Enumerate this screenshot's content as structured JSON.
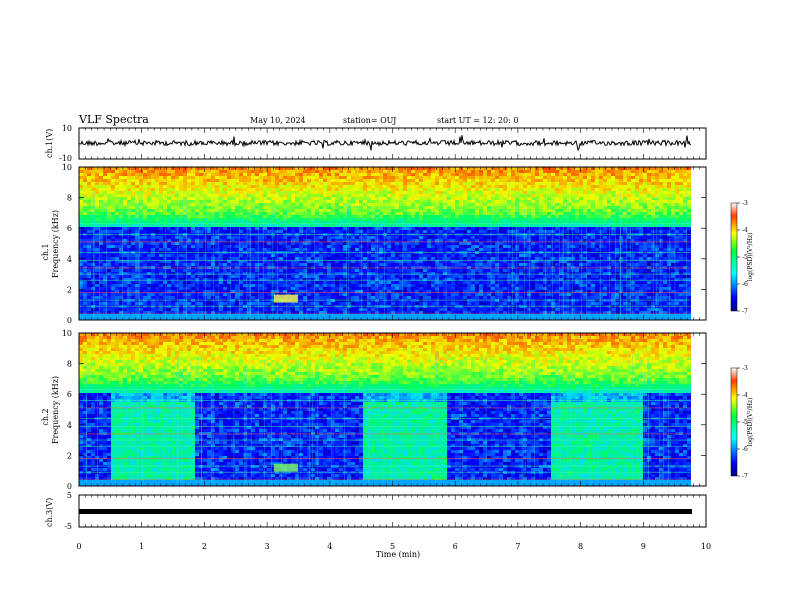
{
  "header": {
    "title": "VLF Spectra",
    "date": "May 10, 2024",
    "station": "station= OUJ",
    "start": "start  UT  =   12: 20: 0"
  },
  "chart_data": [
    {
      "type": "line",
      "panel": "ch1-waveform",
      "ylabel": "ch.1(V)",
      "ylim": [
        -10,
        10
      ],
      "yticks": [
        "10",
        "-10"
      ],
      "xlim": [
        0,
        10
      ]
    },
    {
      "type": "heatmap",
      "panel": "ch1-spectrogram",
      "ylabel_top": "ch.1",
      "ylabel": "Frequency (kHz)",
      "ylim": [
        0,
        10
      ],
      "yticks": [
        "0",
        "2",
        "4",
        "6",
        "8",
        "10"
      ],
      "xlim": [
        0,
        10
      ],
      "colorbar": {
        "label": "log(PSD)(V²/Hz)",
        "range": [
          -7,
          -3
        ],
        "ticks": [
          "-3",
          "-4",
          "-5",
          "-6",
          "-7"
        ]
      }
    },
    {
      "type": "heatmap",
      "panel": "ch2-spectrogram",
      "ylabel_top": "ch.2",
      "ylabel": "Frequency (kHz)",
      "ylim": [
        0,
        10
      ],
      "yticks": [
        "0",
        "2",
        "4",
        "6",
        "8",
        "10"
      ],
      "xlim": [
        0,
        10
      ],
      "colorbar": {
        "label": "log(PSD)(V²/Hz)",
        "range": [
          -7,
          -3
        ],
        "ticks": [
          "-3",
          "-4",
          "-5",
          "-6",
          "-7"
        ]
      }
    },
    {
      "type": "line",
      "panel": "ch3-waveform",
      "ylabel": "ch.3(V)",
      "ylim": [
        -5,
        5
      ],
      "yticks": [
        "5",
        "-5"
      ],
      "xlim": [
        0,
        10
      ],
      "xlabel": "Time (min)",
      "xticks": [
        "0",
        "1",
        "2",
        "3",
        "4",
        "5",
        "6",
        "7",
        "8",
        "9",
        "10"
      ]
    }
  ],
  "colors": {
    "low": "#00007f",
    "mid": "#00ff80",
    "high": "#ff0000"
  }
}
